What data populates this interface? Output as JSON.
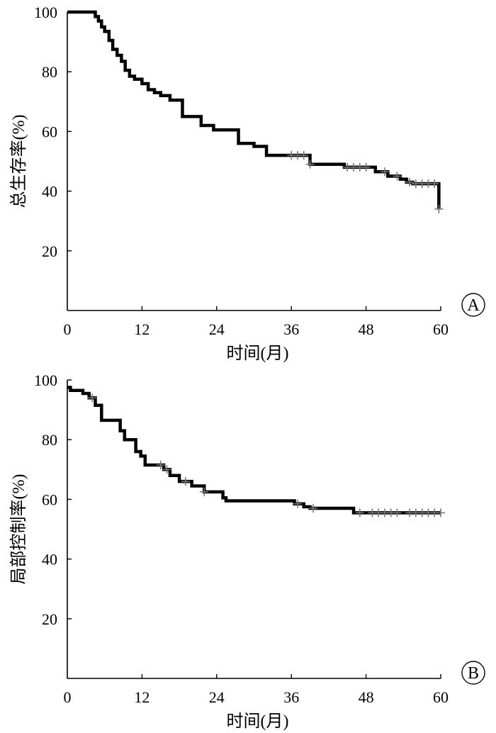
{
  "chart_data": [
    {
      "type": "line",
      "panel_label": "A",
      "xlabel": "时间(月)",
      "ylabel": "总生存率(%)",
      "xlim": [
        0,
        60
      ],
      "ylim": [
        0,
        100
      ],
      "x_ticks": [
        0,
        12,
        24,
        36,
        48,
        60
      ],
      "y_ticks": [
        20,
        40,
        60,
        80,
        100
      ],
      "grid": false,
      "series": [
        {
          "step": true,
          "x": [
            0,
            4,
            4.5,
            5,
            5.5,
            6,
            6.7,
            7.3,
            8,
            8.7,
            9.3,
            10,
            10.8,
            12,
            13,
            14,
            15,
            16.5,
            18.5,
            21.5,
            23.5,
            27.5,
            30,
            32,
            39,
            44.5,
            49.5,
            51.5,
            53.5,
            54.5,
            55.5,
            59.7
          ],
          "y": [
            100,
            100,
            98.5,
            97,
            95,
            93.5,
            90.5,
            87.5,
            85.5,
            83.5,
            80.5,
            78.5,
            77.5,
            76,
            74,
            73,
            72,
            70.5,
            65,
            62,
            60.5,
            56,
            55,
            52,
            49,
            48,
            46.5,
            45,
            44,
            43,
            42.5,
            34
          ]
        }
      ],
      "censor_x": [
        36,
        37,
        38,
        39,
        45,
        46,
        47,
        48,
        51,
        53,
        55,
        56,
        57,
        58,
        59,
        59.7
      ]
    },
    {
      "type": "line",
      "panel_label": "B",
      "xlabel": "时间(月)",
      "ylabel": "局部控制率(%)",
      "xlim": [
        0,
        60
      ],
      "ylim": [
        0,
        100
      ],
      "x_ticks": [
        0,
        12,
        24,
        36,
        48,
        60
      ],
      "y_ticks": [
        20,
        40,
        60,
        80,
        100
      ],
      "grid": false,
      "series": [
        {
          "step": true,
          "x": [
            0,
            0.5,
            2.5,
            3.5,
            4.5,
            5.5,
            8.5,
            9.2,
            11,
            11.8,
            12.5,
            15.5,
            16.5,
            18,
            20,
            22,
            25,
            25.5,
            36.5,
            38,
            39,
            46,
            60
          ],
          "y": [
            97.5,
            96.5,
            95.5,
            94,
            91.5,
            86.5,
            83,
            80,
            76,
            74.5,
            71.5,
            70,
            68,
            66,
            64.5,
            62.5,
            60.5,
            59.5,
            58.5,
            57.5,
            57,
            55.5,
            55.5
          ]
        }
      ],
      "censor_x": [
        4,
        15,
        16,
        19,
        22,
        37,
        39.5,
        47,
        49,
        50,
        51,
        52,
        53,
        55,
        56,
        57,
        58,
        59,
        60
      ]
    }
  ]
}
